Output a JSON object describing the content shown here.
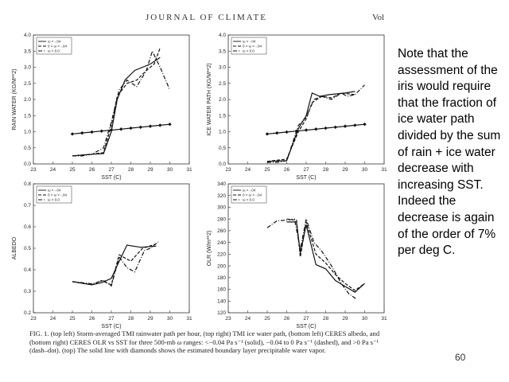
{
  "header": {
    "journal": "JOURNAL OF CLIMATE",
    "vol": "Vol"
  },
  "legend_labels": [
    "ω < -.04",
    "0 > ω > -.04",
    "ω > 0.0"
  ],
  "chart_data": [
    {
      "type": "line",
      "xlabel": "SST (C)",
      "ylabel": "RAIN WATER (KG/M**2)",
      "xlim": [
        23,
        31
      ],
      "ylim": [
        0,
        4
      ],
      "xticks": [
        "23",
        "24",
        "25",
        "26",
        "27",
        "28",
        "29",
        "30",
        "31"
      ],
      "yticks": [
        "0.0",
        "0.5",
        "1.0",
        "1.5",
        "2.0",
        "2.5",
        "3.0",
        "3.5",
        "4.0"
      ],
      "series": [
        {
          "name": "solid",
          "x": [
            25.0,
            26.0,
            26.6,
            27.0,
            27.3,
            27.7,
            28.2,
            29.0,
            29.5
          ],
          "y": [
            0.25,
            0.3,
            0.32,
            1.0,
            2.0,
            2.6,
            2.9,
            3.1,
            3.3
          ]
        },
        {
          "name": "dashed",
          "x": [
            25.0,
            26.0,
            26.6,
            27.0,
            27.3,
            27.8,
            28.3,
            28.8,
            29.2,
            29.5
          ],
          "y": [
            0.25,
            0.3,
            0.35,
            1.2,
            2.1,
            2.5,
            2.6,
            2.9,
            3.1,
            3.6
          ]
        },
        {
          "name": "dashdot",
          "x": [
            25.0,
            25.5,
            26.0,
            26.6,
            27.0,
            27.4,
            27.8,
            28.3,
            28.8,
            29.1,
            29.5,
            30.0
          ],
          "y": [
            0.25,
            0.25,
            0.3,
            0.5,
            1.3,
            2.3,
            2.6,
            2.4,
            2.9,
            3.5,
            3.0,
            2.3
          ]
        },
        {
          "name": "diamond",
          "markers": true,
          "x": [
            25,
            25.5,
            26,
            26.5,
            27,
            27.5,
            28,
            28.5,
            29,
            29.5,
            30
          ],
          "y": [
            0.93,
            0.96,
            0.99,
            1.02,
            1.05,
            1.08,
            1.11,
            1.14,
            1.17,
            1.2,
            1.23
          ]
        }
      ]
    },
    {
      "type": "line",
      "xlabel": "SST (C)",
      "ylabel": "ICE WATER PATH (KG/M**2)",
      "xlim": [
        23,
        31
      ],
      "ylim": [
        0,
        4
      ],
      "xticks": [
        "23",
        "24",
        "25",
        "26",
        "27",
        "28",
        "29",
        "30",
        "31"
      ],
      "yticks": [
        "0.0",
        "0.5",
        "1.0",
        "1.5",
        "2.0",
        "2.5",
        "3.0",
        "3.5",
        "4.0"
      ],
      "series": [
        {
          "name": "solid",
          "x": [
            25.0,
            26.0,
            26.6,
            27.0,
            27.3,
            27.7,
            28.2,
            29.0,
            29.5
          ],
          "y": [
            0.08,
            0.1,
            1.1,
            1.5,
            2.2,
            2.1,
            2.15,
            2.2,
            2.25
          ]
        },
        {
          "name": "dashed",
          "x": [
            25.0,
            26.0,
            26.6,
            27.0,
            27.3,
            27.8,
            28.3,
            28.8,
            29.5
          ],
          "y": [
            0.08,
            0.15,
            1.0,
            1.4,
            1.9,
            2.1,
            2.05,
            2.2,
            2.15
          ]
        },
        {
          "name": "dashdot",
          "x": [
            25.0,
            25.5,
            26.0,
            26.6,
            27.0,
            27.4,
            27.8,
            28.3,
            28.8,
            29.1,
            29.5,
            30.0
          ],
          "y": [
            0.05,
            0.05,
            0.1,
            1.2,
            1.45,
            2.0,
            2.1,
            2.0,
            2.2,
            2.1,
            2.15,
            2.45
          ]
        },
        {
          "name": "diamond",
          "markers": true,
          "x": [
            25,
            25.5,
            26,
            26.5,
            27,
            27.5,
            28,
            28.5,
            29,
            29.5,
            30
          ],
          "y": [
            0.93,
            0.96,
            0.99,
            1.02,
            1.05,
            1.08,
            1.11,
            1.14,
            1.17,
            1.2,
            1.23
          ]
        }
      ]
    },
    {
      "type": "line",
      "xlabel": "SST (C)",
      "ylabel": "ALBEDO",
      "xlim": [
        23,
        31
      ],
      "ylim": [
        0.2,
        0.8
      ],
      "xticks": [
        "23",
        "24",
        "25",
        "26",
        "27",
        "28",
        "29",
        "30",
        "31"
      ],
      "yticks": [
        "0.2",
        "0.3",
        "0.4",
        "0.5",
        "0.6",
        "0.7",
        "0.8"
      ],
      "series": [
        {
          "name": "solid",
          "x": [
            25.0,
            26.0,
            26.5,
            27.0,
            27.3,
            27.8,
            28.5,
            29.3
          ],
          "y": [
            0.345,
            0.33,
            0.34,
            0.36,
            0.42,
            0.515,
            0.505,
            0.51
          ]
        },
        {
          "name": "dashed",
          "x": [
            25.0,
            26.0,
            26.5,
            27.0,
            27.4,
            28.0,
            28.6,
            29.3
          ],
          "y": [
            0.345,
            0.33,
            0.35,
            0.33,
            0.47,
            0.44,
            0.5,
            0.52
          ]
        },
        {
          "name": "dashdot",
          "x": [
            25.0,
            25.5,
            26.0,
            26.6,
            27.0,
            27.4,
            27.8,
            28.2,
            28.7,
            29.0,
            29.4
          ],
          "y": [
            0.345,
            0.34,
            0.335,
            0.35,
            0.325,
            0.46,
            0.41,
            0.39,
            0.49,
            0.5,
            0.53
          ]
        }
      ]
    },
    {
      "type": "line",
      "xlabel": "SST (C)",
      "ylabel": "OLR (W/m**2)",
      "xlim": [
        23,
        31
      ],
      "ylim": [
        120,
        340
      ],
      "xticks": [
        "23",
        "24",
        "25",
        "26",
        "27",
        "28",
        "29",
        "30",
        "31"
      ],
      "yticks": [
        "120",
        "140",
        "160",
        "180",
        "200",
        "220",
        "240",
        "260",
        "280",
        "300",
        "320",
        "340"
      ],
      "series": [
        {
          "name": "solid",
          "x": [
            26.0,
            26.5,
            26.7,
            27.0,
            27.5,
            28.0,
            28.5,
            29.0,
            29.5,
            30.0
          ],
          "y": [
            275,
            275,
            222,
            270,
            202,
            195,
            175,
            165,
            155,
            170
          ]
        },
        {
          "name": "dashed",
          "x": [
            26.0,
            26.5,
            26.7,
            27.0,
            27.5,
            28.0,
            28.5,
            29.0,
            29.5,
            30.0
          ],
          "y": [
            280,
            278,
            215,
            275,
            220,
            205,
            185,
            170,
            158,
            170
          ]
        },
        {
          "name": "dashdot",
          "x": [
            25.0,
            25.5,
            26.0,
            26.4,
            26.7,
            27.0,
            27.4,
            27.8,
            28.3,
            28.8,
            29.2,
            29.6
          ],
          "y": [
            265,
            277,
            278,
            280,
            228,
            280,
            240,
            225,
            200,
            170,
            152,
            143
          ]
        }
      ]
    }
  ],
  "caption": "FIG. 1. (top left) Storm-averaged TMI rainwater path per hour, (top right) TMI ice water path, (bottom left) CERES albedo, and (bottom right) CERES OLR vs SST for three 500-mb ω ranges: <−0.04 Pa s⁻¹ (solid), −0.04 to 0 Pa s⁻¹ (dashed), and >0 Pa s⁻¹ (dash–dot). (top) The solid line with diamonds shows the estimated boundary layer precipitable water vapor.",
  "note": "Note that the assessment of the iris would require that the fraction of ice water path divided by the sum of rain + ice water decrease with increasing SST.  Indeed the decrease is again of the order of 7% per deg C.",
  "page_number": "60"
}
